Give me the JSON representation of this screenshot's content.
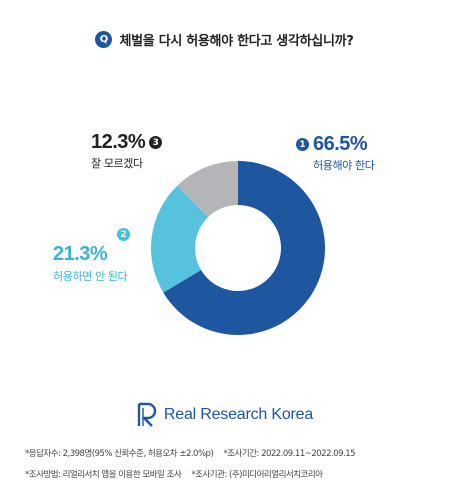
{
  "question": {
    "badge": "Q",
    "text": "체벌을 다시 허용해야 한다고 생각하십니까?"
  },
  "chart_data": {
    "type": "pie",
    "donut": true,
    "slices": [
      {
        "number": "1",
        "label": "허용해야 한다",
        "value": 66.5,
        "display": "66.5%",
        "color": "#1e56a0"
      },
      {
        "number": "2",
        "label": "허용하면 안 된다",
        "value": 21.3,
        "display": "21.3%",
        "color": "#56c2de"
      },
      {
        "number": "3",
        "label": "잘 모르겠다",
        "value": 12.3,
        "display": "12.3%",
        "color": "#b3b5b8"
      }
    ]
  },
  "logo": {
    "text": "Real Research Korea"
  },
  "footer": {
    "respondents": "*응답자수: 2,398명(95% 신뢰수준, 허용오차 ±2.0%p)",
    "period": "*조사기간: 2022.09.11~2022.09.15",
    "method": "*조사방법: 리얼리서치 앱을 이용한 모바일 조사",
    "agency": "*조사기관: (주)미디어리얼리서치코리아"
  }
}
